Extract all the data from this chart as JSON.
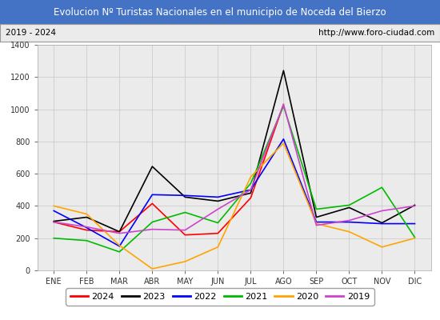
{
  "title": "Evolucion Nº Turistas Nacionales en el municipio de Noceda del Bierzo",
  "subtitle_left": "2019 - 2024",
  "subtitle_right": "http://www.foro-ciudad.com",
  "months": [
    "ENE",
    "FEB",
    "MAR",
    "ABR",
    "MAY",
    "JUN",
    "JUL",
    "AGO",
    "SEP",
    "OCT",
    "NOV",
    "DIC"
  ],
  "ylim": [
    0,
    1400
  ],
  "yticks": [
    0,
    200,
    400,
    600,
    800,
    1000,
    1200,
    1400
  ],
  "series": {
    "2024": {
      "color": "#ff0000",
      "values": [
        300,
        250,
        240,
        415,
        220,
        230,
        450,
        1030,
        null,
        null,
        null,
        null
      ]
    },
    "2023": {
      "color": "#000000",
      "values": [
        305,
        330,
        240,
        645,
        455,
        430,
        480,
        1240,
        330,
        390,
        295,
        405
      ]
    },
    "2022": {
      "color": "#0000ff",
      "values": [
        370,
        265,
        150,
        470,
        465,
        455,
        500,
        815,
        300,
        300,
        290,
        290
      ]
    },
    "2021": {
      "color": "#00bb00",
      "values": [
        200,
        185,
        115,
        300,
        360,
        295,
        540,
        1020,
        380,
        405,
        515,
        205
      ]
    },
    "2020": {
      "color": "#ffa500",
      "values": [
        400,
        350,
        155,
        10,
        55,
        145,
        580,
        790,
        290,
        240,
        145,
        200
      ]
    },
    "2019": {
      "color": "#cc44cc",
      "values": [
        300,
        270,
        230,
        255,
        250,
        380,
        500,
        1030,
        280,
        310,
        370,
        400
      ]
    }
  },
  "legend_order": [
    "2024",
    "2023",
    "2022",
    "2021",
    "2020",
    "2019"
  ],
  "title_bg_color": "#4472c4",
  "title_text_color": "#ffffff",
  "subtitle_bg_color": "#ebebeb",
  "plot_bg_color": "#ebebeb",
  "grid_color": "#cccccc",
  "outer_bg": "#ffffff"
}
